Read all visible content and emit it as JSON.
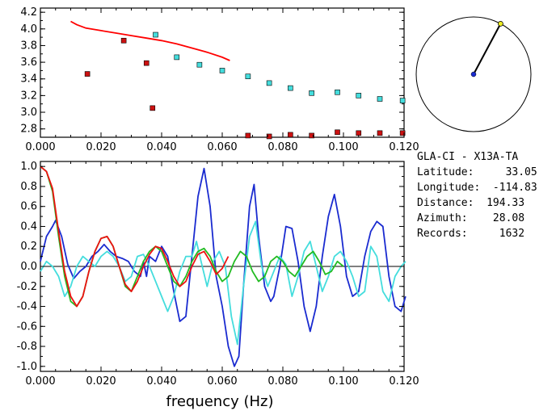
{
  "chart_data": [
    {
      "type": "scatter",
      "xlim": [
        0.0,
        0.12
      ],
      "ylim": [
        2.7,
        4.25
      ],
      "xticks": [
        "0.000",
        "0.020",
        "0.040",
        "0.060",
        "0.080",
        "0.100",
        "0.120"
      ],
      "yticks": [
        "2.8",
        "3.0",
        "3.2",
        "3.4",
        "3.6",
        "3.8",
        "4.0",
        "4.2"
      ],
      "series": [
        {
          "color": "#ff0000",
          "kind": "line",
          "x": [
            0.01,
            0.012,
            0.015,
            0.02,
            0.025,
            0.03,
            0.035,
            0.04,
            0.045,
            0.05,
            0.055,
            0.06,
            0.0625
          ],
          "y": [
            4.09,
            4.05,
            4.01,
            3.98,
            3.95,
            3.92,
            3.89,
            3.86,
            3.82,
            3.77,
            3.72,
            3.66,
            3.62
          ]
        },
        {
          "color": "#cc1111",
          "kind": "points",
          "x": [
            0.0155,
            0.0275,
            0.035,
            0.037,
            0.0685,
            0.0755,
            0.0825,
            0.0895,
            0.098,
            0.105,
            0.112,
            0.1195
          ],
          "y": [
            3.46,
            3.86,
            3.59,
            3.05,
            2.72,
            2.71,
            2.73,
            2.72,
            2.76,
            2.75,
            2.75,
            2.75
          ]
        },
        {
          "color": "#44dddd",
          "kind": "points",
          "x": [
            0.038,
            0.045,
            0.0525,
            0.06,
            0.0685,
            0.0755,
            0.0825,
            0.0895,
            0.098,
            0.105,
            0.112,
            0.1195
          ],
          "y": [
            3.93,
            3.66,
            3.57,
            3.5,
            3.43,
            3.35,
            3.29,
            3.23,
            3.24,
            3.2,
            3.16,
            3.14
          ]
        }
      ]
    },
    {
      "type": "line",
      "xlabel": "frequency (Hz)",
      "xlim": [
        0.0,
        0.12
      ],
      "ylim": [
        -1.05,
        1.05
      ],
      "xticks": [
        "0.000",
        "0.020",
        "0.040",
        "0.060",
        "0.080",
        "0.100",
        "0.120"
      ],
      "yticks": [
        "1.0",
        "0.8",
        "0.6",
        "0.4",
        "0.2",
        "0.0",
        "-0.2",
        "-0.4",
        "-0.6",
        "-0.8",
        "-1.0"
      ],
      "series": [
        {
          "color": "#1a2bd0",
          "x": [
            0.0,
            0.002,
            0.004,
            0.005,
            0.007,
            0.009,
            0.011,
            0.013,
            0.015,
            0.017,
            0.019,
            0.021,
            0.023,
            0.025,
            0.027,
            0.029,
            0.031,
            0.033,
            0.034,
            0.035,
            0.036,
            0.038,
            0.04,
            0.042,
            0.044,
            0.046,
            0.048,
            0.05,
            0.052,
            0.054,
            0.056,
            0.058,
            0.06,
            0.062,
            0.064,
            0.0655,
            0.067,
            0.069,
            0.0705,
            0.072,
            0.074,
            0.076,
            0.077,
            0.079,
            0.081,
            0.083,
            0.085,
            0.087,
            0.089,
            0.091,
            0.093,
            0.095,
            0.097,
            0.099,
            0.101,
            0.103,
            0.105,
            0.107,
            0.109,
            0.111,
            0.113,
            0.115,
            0.117,
            0.119,
            0.1205
          ],
          "y": [
            0.05,
            0.3,
            0.4,
            0.46,
            0.3,
            0.02,
            -0.12,
            -0.05,
            0.0,
            0.1,
            0.15,
            0.22,
            0.15,
            0.1,
            0.08,
            0.05,
            -0.05,
            -0.1,
            0.05,
            -0.1,
            0.1,
            0.05,
            0.2,
            0.1,
            -0.25,
            -0.55,
            -0.5,
            0.1,
            0.7,
            0.98,
            0.6,
            -0.1,
            -0.4,
            -0.8,
            -1.0,
            -0.9,
            -0.2,
            0.6,
            0.82,
            0.3,
            -0.2,
            -0.35,
            -0.3,
            0.0,
            0.4,
            0.38,
            0.05,
            -0.4,
            -0.65,
            -0.4,
            0.1,
            0.5,
            0.72,
            0.4,
            -0.1,
            -0.3,
            -0.25,
            0.1,
            0.35,
            0.45,
            0.4,
            -0.1,
            -0.4,
            -0.45,
            -0.3
          ]
        },
        {
          "color": "#44dddd",
          "x": [
            0.0,
            0.002,
            0.004,
            0.006,
            0.008,
            0.01,
            0.012,
            0.014,
            0.016,
            0.018,
            0.02,
            0.022,
            0.024,
            0.026,
            0.028,
            0.03,
            0.032,
            0.034,
            0.036,
            0.038,
            0.04,
            0.042,
            0.044,
            0.046,
            0.048,
            0.05,
            0.0515,
            0.053,
            0.055,
            0.057,
            0.059,
            0.061,
            0.063,
            0.065,
            0.067,
            0.069,
            0.071,
            0.073,
            0.075,
            0.077,
            0.079,
            0.081,
            0.083,
            0.085,
            0.087,
            0.089,
            0.091,
            0.093,
            0.095,
            0.097,
            0.099,
            0.101,
            0.103,
            0.105,
            0.107,
            0.109,
            0.111,
            0.113,
            0.115,
            0.117,
            0.119,
            0.1205
          ],
          "y": [
            -0.05,
            0.05,
            0.0,
            -0.1,
            -0.3,
            -0.2,
            0.0,
            0.1,
            0.05,
            0.0,
            0.1,
            0.15,
            0.1,
            0.0,
            -0.15,
            -0.1,
            0.1,
            0.12,
            0.0,
            -0.15,
            -0.3,
            -0.45,
            -0.3,
            -0.05,
            0.1,
            0.1,
            0.25,
            0.05,
            -0.2,
            0.05,
            0.15,
            0.0,
            -0.5,
            -0.78,
            -0.2,
            0.3,
            0.45,
            0.0,
            -0.2,
            -0.05,
            0.1,
            0.02,
            -0.3,
            -0.1,
            0.15,
            0.25,
            0.0,
            -0.25,
            -0.1,
            0.1,
            0.15,
            0.05,
            -0.1,
            -0.3,
            -0.25,
            0.2,
            0.1,
            -0.25,
            -0.35,
            -0.1,
            0.0,
            0.05
          ]
        },
        {
          "color": "#22bb22",
          "x": [
            0.0,
            0.002,
            0.004,
            0.006,
            0.008,
            0.01,
            0.012,
            0.014,
            0.016,
            0.018,
            0.02,
            0.022,
            0.024,
            0.026,
            0.028,
            0.03,
            0.032,
            0.034,
            0.036,
            0.038,
            0.04,
            0.042,
            0.044,
            0.046,
            0.048,
            0.05,
            0.052,
            0.054,
            0.056,
            0.058,
            0.06,
            0.062,
            0.064,
            0.066,
            0.068,
            0.07,
            0.072,
            0.074,
            0.076,
            0.078,
            0.08,
            0.082,
            0.084,
            0.086,
            0.088,
            0.09,
            0.092,
            0.094,
            0.096,
            0.098,
            0.1
          ],
          "y": [
            1.0,
            0.95,
            0.75,
            0.3,
            -0.1,
            -0.35,
            -0.4,
            -0.3,
            -0.05,
            0.15,
            0.28,
            0.3,
            0.2,
            0.0,
            -0.2,
            -0.25,
            -0.1,
            0.05,
            0.15,
            0.2,
            0.15,
            0.0,
            -0.15,
            -0.2,
            -0.1,
            0.05,
            0.15,
            0.18,
            0.1,
            -0.05,
            -0.15,
            -0.1,
            0.05,
            0.15,
            0.1,
            -0.05,
            -0.15,
            -0.1,
            0.05,
            0.1,
            0.05,
            -0.05,
            -0.1,
            0.0,
            0.1,
            0.15,
            0.05,
            -0.08,
            -0.05,
            0.05,
            0.0
          ]
        },
        {
          "color": "#ee1111",
          "x": [
            0.0,
            0.002,
            0.004,
            0.006,
            0.008,
            0.01,
            0.012,
            0.014,
            0.016,
            0.018,
            0.02,
            0.022,
            0.024,
            0.026,
            0.028,
            0.03,
            0.032,
            0.034,
            0.036,
            0.038,
            0.04,
            0.042,
            0.044,
            0.046,
            0.048,
            0.05,
            0.052,
            0.054,
            0.056,
            0.058,
            0.06,
            0.062
          ],
          "y": [
            1.0,
            0.95,
            0.78,
            0.35,
            -0.05,
            -0.3,
            -0.4,
            -0.3,
            -0.05,
            0.15,
            0.28,
            0.3,
            0.2,
            0.0,
            -0.18,
            -0.25,
            -0.15,
            0.0,
            0.12,
            0.2,
            0.18,
            0.05,
            -0.1,
            -0.2,
            -0.15,
            0.0,
            0.12,
            0.15,
            0.05,
            -0.08,
            -0.02,
            0.1
          ]
        }
      ]
    },
    {
      "type": "azimuth-dial",
      "azimuth_deg": 28.08
    }
  ],
  "info": {
    "station": "GLA-CI  -  X13A-TA",
    "lines": [
      "Latitude:     33.05",
      "Longitude:  -114.83",
      "Distance:  194.33",
      "Azimuth:    28.08",
      "Records:     1632"
    ]
  },
  "colors": {
    "red_curve": "#ee1111",
    "cyan": "#44dddd",
    "blue": "#1a2bd0",
    "green": "#22bb22",
    "dial_center": "#1a2bd0",
    "dial_tip": "#eeee22"
  }
}
